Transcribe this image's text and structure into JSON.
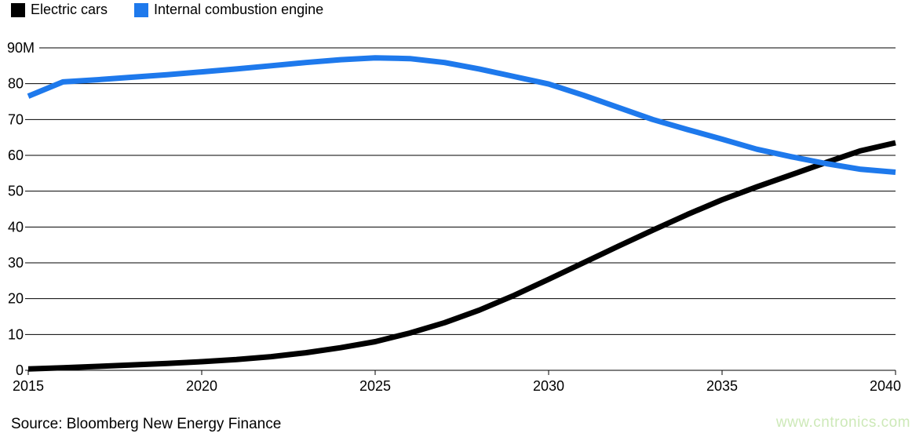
{
  "legend": {
    "items": [
      {
        "label": "Electric cars",
        "color": "#000000"
      },
      {
        "label": "Internal combustion engine",
        "color": "#1e79ec"
      }
    ]
  },
  "source": {
    "text": "Source: Bloomberg New Energy Finance"
  },
  "watermark": {
    "text": "www.cntronics.com",
    "color": "#cde9b8"
  },
  "chart_data": {
    "type": "line",
    "title": "",
    "xlabel": "",
    "ylabel": "",
    "x": [
      2015,
      2016,
      2017,
      2018,
      2019,
      2020,
      2021,
      2022,
      2023,
      2024,
      2025,
      2026,
      2027,
      2028,
      2029,
      2030,
      2031,
      2032,
      2033,
      2034,
      2035,
      2036,
      2037,
      2038,
      2039,
      2040
    ],
    "series": [
      {
        "name": "Electric cars",
        "color": "#000000",
        "values": [
          0.4,
          0.7,
          1.1,
          1.5,
          1.9,
          2.4,
          3.0,
          3.8,
          4.9,
          6.3,
          8.0,
          10.4,
          13.3,
          16.8,
          20.9,
          25.4,
          30.0,
          34.6,
          39.1,
          43.5,
          47.6,
          51.2,
          54.6,
          58.0,
          61.3,
          63.5
        ]
      },
      {
        "name": "Internal combustion engine",
        "color": "#1e79ec",
        "values": [
          76.5,
          80.5,
          81.1,
          81.8,
          82.5,
          83.3,
          84.1,
          85.0,
          85.9,
          86.7,
          87.2,
          87.0,
          85.9,
          84.1,
          82.0,
          79.9,
          76.8,
          73.4,
          70.0,
          67.2,
          64.5,
          61.7,
          59.6,
          57.7,
          56.1,
          55.3
        ]
      }
    ],
    "xlim": [
      2015,
      2040
    ],
    "ylim": [
      0,
      90
    ],
    "x_ticks": [
      2015,
      2020,
      2025,
      2030,
      2035,
      2040
    ],
    "y_ticks": [
      0,
      10,
      20,
      30,
      40,
      50,
      60,
      70,
      80,
      90
    ],
    "y_tick_labels": [
      "0",
      "10",
      "20",
      "30",
      "40",
      "50",
      "60",
      "70",
      "80",
      "90M"
    ],
    "grid": "horizontal",
    "legend_position": "top-left"
  }
}
